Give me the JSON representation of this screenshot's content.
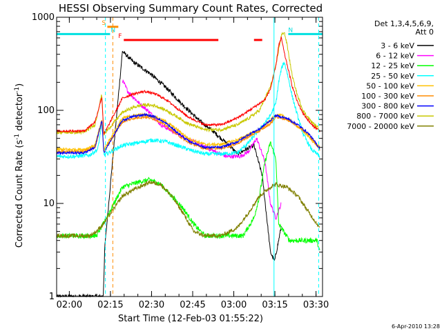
{
  "chart_data": {
    "type": "line",
    "title": "HESSI Observing Summary Count Rates, Corrected",
    "xlabel": "Start Time (12-Feb-03 01:55:22)",
    "ylabel_main": "Corrected Count Rate (s",
    "ylabel_sup1": "-1",
    "ylabel_mid": " detector",
    "ylabel_sup2": "-1",
    "ylabel_end": ")",
    "x_unit": "minutes after 01:55:22 UT",
    "xlim": [
      0,
      97
    ],
    "ylim": [
      1,
      1000
    ],
    "yscale": "log",
    "x_ticks": [
      {
        "t": 4.63,
        "label": "02:00"
      },
      {
        "t": 19.63,
        "label": "02:15"
      },
      {
        "t": 34.63,
        "label": "02:30"
      },
      {
        "t": 49.63,
        "label": "02:45"
      },
      {
        "t": 64.63,
        "label": "03:00"
      },
      {
        "t": 79.63,
        "label": "03:15"
      },
      {
        "t": 94.63,
        "label": "03:30"
      }
    ],
    "y_ticks": [
      {
        "v": 1,
        "label": "1"
      },
      {
        "v": 10,
        "label": "10"
      },
      {
        "v": 100,
        "label": "100"
      },
      {
        "v": 1000,
        "label": "1000"
      }
    ],
    "legend_header": [
      "Det 1,3,4,5,6,9,",
      "Att 0"
    ],
    "legend_placement": "right",
    "footer": "6-Apr-2010 13:28",
    "flags": [
      {
        "label": "S",
        "color": "#ff8c00",
        "t": [
          18.5,
          22.5
        ],
        "y": 790
      },
      {
        "label": "N",
        "color": "#00e0e0",
        "t": [
          0,
          19.5
        ],
        "y": 660
      },
      {
        "label": "N",
        "color": "#00e0e0",
        "t": [
          84.5,
          97
        ],
        "y": 660
      },
      {
        "label": "F",
        "color": "#ff0000",
        "t": [
          24.5,
          59.0
        ],
        "y": 570
      },
      {
        "label": "",
        "color": "#ff0000",
        "t": [
          72.0,
          75.0
        ],
        "y": 570
      }
    ],
    "vlines": [
      {
        "t": 17.8,
        "color": "#00ffff",
        "dash": true
      },
      {
        "t": 20.5,
        "color": "#ff8c00",
        "dash": true
      },
      {
        "t": 79.3,
        "color": "#00ffff",
        "dash": false
      },
      {
        "t": 95.6,
        "color": "#00ffff",
        "dash": true
      }
    ],
    "series": [
      {
        "name": "3 - 6 keV",
        "color": "#000000",
        "noise": 0.05,
        "points": [
          [
            0,
            1.0
          ],
          [
            17.0,
            1.0
          ],
          [
            17.6,
            3.5
          ],
          [
            24.0,
            430
          ],
          [
            28,
            330
          ],
          [
            34,
            250
          ],
          [
            40,
            175
          ],
          [
            46,
            115
          ],
          [
            52,
            78
          ],
          [
            57,
            60
          ],
          [
            60,
            50
          ],
          [
            63,
            42
          ],
          [
            66,
            34
          ],
          [
            69,
            38
          ],
          [
            72,
            42
          ],
          [
            75,
            20
          ],
          [
            78,
            3
          ],
          [
            79.5,
            2.4
          ],
          [
            81,
            4.0
          ],
          [
            82,
            5.8
          ]
        ]
      },
      {
        "name": "6 - 12 keV",
        "color": "#ff00ff",
        "noise": 0.05,
        "points": [
          [
            24.0,
            210
          ],
          [
            26,
            160
          ],
          [
            30,
            120
          ],
          [
            34,
            95
          ],
          [
            38,
            70
          ],
          [
            44,
            56
          ],
          [
            50,
            46
          ],
          [
            56,
            38
          ],
          [
            62,
            32
          ],
          [
            67,
            32
          ],
          [
            70,
            36
          ],
          [
            73,
            50
          ],
          [
            76,
            28
          ],
          [
            78,
            10
          ],
          [
            80,
            7
          ],
          [
            82,
            10
          ]
        ]
      },
      {
        "name": "12 - 25 keV",
        "color": "#00ff00",
        "noise": 0.06,
        "points": [
          [
            0,
            4.5
          ],
          [
            6,
            4.5
          ],
          [
            12,
            4.5
          ],
          [
            14.5,
            4.5
          ],
          [
            17,
            6
          ],
          [
            24.0,
            15
          ],
          [
            30,
            17
          ],
          [
            34,
            18
          ],
          [
            38,
            16
          ],
          [
            42,
            12
          ],
          [
            46,
            9
          ],
          [
            50,
            6
          ],
          [
            54,
            4.5
          ],
          [
            60,
            4.5
          ],
          [
            64,
            4.5
          ],
          [
            68,
            4.5
          ],
          [
            72,
            7
          ],
          [
            74,
            12
          ],
          [
            76,
            28
          ],
          [
            78,
            45
          ],
          [
            80,
            30
          ],
          [
            81,
            6
          ],
          [
            85,
            4
          ],
          [
            90,
            4
          ],
          [
            95,
            4
          ],
          [
            96,
            3
          ]
        ]
      },
      {
        "name": "25 - 50 keV",
        "color": "#00ffff",
        "noise": 0.05,
        "points": [
          [
            0,
            32
          ],
          [
            6,
            32
          ],
          [
            12,
            33
          ],
          [
            15,
            38
          ],
          [
            16.6,
            75
          ],
          [
            17.3,
            33
          ],
          [
            24.0,
            42
          ],
          [
            30,
            45
          ],
          [
            35,
            48
          ],
          [
            40,
            46
          ],
          [
            44,
            42
          ],
          [
            48,
            38
          ],
          [
            54,
            34
          ],
          [
            60,
            34
          ],
          [
            66,
            35
          ],
          [
            70,
            45
          ],
          [
            74,
            62
          ],
          [
            78,
            88
          ],
          [
            80,
            120
          ],
          [
            81,
            200
          ],
          [
            82,
            280
          ],
          [
            83,
            330
          ],
          [
            84,
            260
          ],
          [
            86,
            140
          ],
          [
            88,
            85
          ],
          [
            90,
            55
          ],
          [
            93,
            38
          ],
          [
            96,
            32
          ]
        ]
      },
      {
        "name": "50 - 100 keV",
        "color": "#ffc000",
        "noise": 0.04,
        "points": [
          [
            0,
            38
          ],
          [
            10,
            38
          ],
          [
            14,
            42
          ],
          [
            16.5,
            80
          ],
          [
            17.2,
            38
          ],
          [
            24.0,
            82
          ],
          [
            28,
            88
          ],
          [
            32,
            90
          ],
          [
            36,
            85
          ],
          [
            40,
            75
          ],
          [
            44,
            62
          ],
          [
            48,
            50
          ],
          [
            54,
            43
          ],
          [
            60,
            43
          ],
          [
            66,
            48
          ],
          [
            70,
            55
          ],
          [
            74,
            62
          ],
          [
            78,
            78
          ],
          [
            80,
            90
          ],
          [
            82,
            88
          ],
          [
            86,
            75
          ],
          [
            90,
            60
          ],
          [
            94,
            45
          ],
          [
            96,
            40
          ]
        ]
      },
      {
        "name": "100 - 300 keV",
        "color": "#ff8c00",
        "noise": 0.03,
        "points": [
          [
            0,
            36
          ],
          [
            10,
            36
          ],
          [
            14,
            40
          ],
          [
            16.5,
            75
          ],
          [
            17.2,
            36
          ],
          [
            24.0,
            75
          ],
          [
            28,
            82
          ],
          [
            32,
            85
          ],
          [
            36,
            80
          ],
          [
            40,
            68
          ],
          [
            44,
            55
          ],
          [
            48,
            45
          ],
          [
            54,
            39
          ],
          [
            60,
            39
          ],
          [
            66,
            44
          ],
          [
            70,
            52
          ],
          [
            74,
            60
          ],
          [
            78,
            72
          ],
          [
            80,
            85
          ],
          [
            84,
            80
          ],
          [
            88,
            68
          ],
          [
            92,
            55
          ],
          [
            96,
            38
          ]
        ]
      },
      {
        "name": "300 - 800 keV",
        "color": "#0000ff",
        "noise": 0.03,
        "points": [
          [
            0,
            35
          ],
          [
            10,
            35
          ],
          [
            14,
            40
          ],
          [
            16.5,
            78
          ],
          [
            17.2,
            35
          ],
          [
            24.0,
            78
          ],
          [
            28,
            86
          ],
          [
            32,
            90
          ],
          [
            36,
            85
          ],
          [
            40,
            72
          ],
          [
            44,
            58
          ],
          [
            48,
            47
          ],
          [
            54,
            40
          ],
          [
            60,
            40
          ],
          [
            66,
            46
          ],
          [
            70,
            55
          ],
          [
            74,
            63
          ],
          [
            78,
            78
          ],
          [
            80,
            88
          ],
          [
            84,
            82
          ],
          [
            88,
            70
          ],
          [
            92,
            56
          ],
          [
            96,
            39
          ]
        ]
      },
      {
        "name": "800 - 7000 keV",
        "color": "#c8c800",
        "noise": 0.04,
        "points": [
          [
            0,
            58
          ],
          [
            10,
            58
          ],
          [
            14,
            70
          ],
          [
            16.5,
            150
          ],
          [
            17.2,
            55
          ],
          [
            24.0,
            95
          ],
          [
            28,
            108
          ],
          [
            32,
            115
          ],
          [
            36,
            112
          ],
          [
            40,
            100
          ],
          [
            44,
            85
          ],
          [
            48,
            72
          ],
          [
            54,
            62
          ],
          [
            60,
            62
          ],
          [
            66,
            70
          ],
          [
            70,
            82
          ],
          [
            74,
            100
          ],
          [
            78,
            180
          ],
          [
            80,
            300
          ],
          [
            81,
            450
          ],
          [
            82,
            640
          ],
          [
            83,
            700
          ],
          [
            84,
            520
          ],
          [
            86,
            230
          ],
          [
            88,
            140
          ],
          [
            90,
            98
          ],
          [
            93,
            75
          ],
          [
            96,
            62
          ]
        ]
      },
      {
        "name": "7000 - 20000 keV",
        "color": "#808000",
        "noise": 0.05,
        "points": [
          [
            0,
            4.5
          ],
          [
            6,
            4.5
          ],
          [
            12,
            4.5
          ],
          [
            14.5,
            5
          ],
          [
            17,
            6
          ],
          [
            24.0,
            12
          ],
          [
            28,
            14
          ],
          [
            34,
            17
          ],
          [
            38,
            16
          ],
          [
            42,
            12
          ],
          [
            46,
            8
          ],
          [
            50,
            5
          ],
          [
            54,
            4.5
          ],
          [
            60,
            4.5
          ],
          [
            66,
            5.5
          ],
          [
            70,
            8
          ],
          [
            74,
            12
          ],
          [
            78,
            15
          ],
          [
            80,
            16
          ],
          [
            84,
            15
          ],
          [
            88,
            12
          ],
          [
            92,
            8
          ],
          [
            96,
            5.5
          ]
        ]
      },
      {
        "name": "",
        "color": "#ff0000",
        "noise": 0.03,
        "points": [
          [
            0,
            60
          ],
          [
            10,
            60
          ],
          [
            14,
            75
          ],
          [
            16.5,
            140
          ],
          [
            17.2,
            55
          ],
          [
            24.0,
            135
          ],
          [
            28,
            150
          ],
          [
            32,
            160
          ],
          [
            36,
            150
          ],
          [
            40,
            130
          ],
          [
            44,
            105
          ],
          [
            48,
            85
          ],
          [
            54,
            70
          ],
          [
            60,
            70
          ],
          [
            64,
            78
          ],
          [
            68,
            90
          ],
          [
            72,
            108
          ],
          [
            76,
            130
          ],
          [
            78,
            170
          ],
          [
            80,
            300
          ],
          [
            81,
            500
          ],
          [
            82,
            600
          ],
          [
            83,
            420
          ],
          [
            86,
            180
          ],
          [
            88,
            120
          ],
          [
            90,
            92
          ],
          [
            93,
            70
          ],
          [
            96,
            60
          ]
        ]
      }
    ]
  }
}
